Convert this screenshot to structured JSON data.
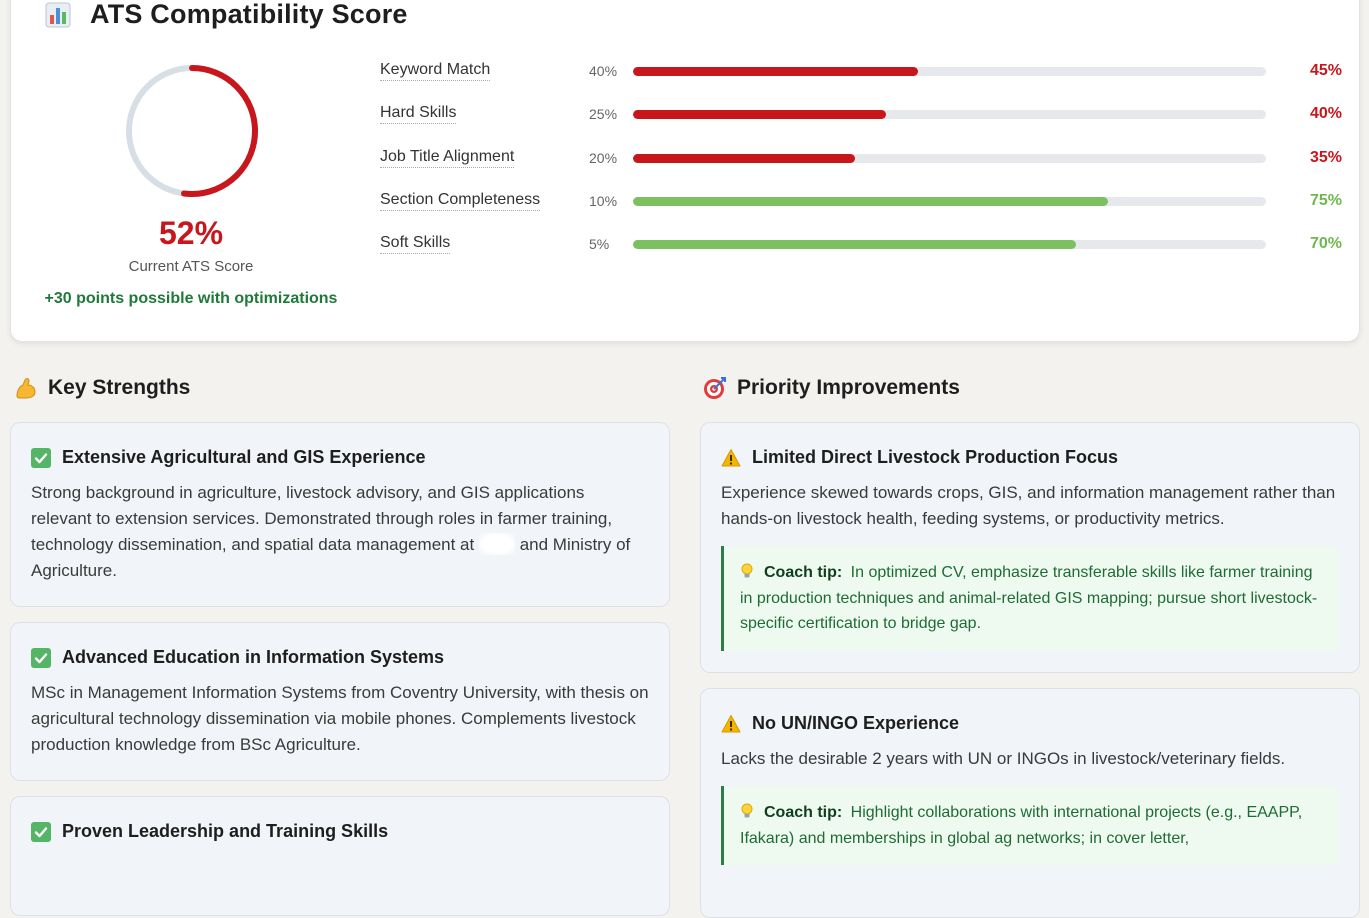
{
  "ats": {
    "title": "ATS Compatibility Score",
    "score": "52%",
    "score_fraction": 0.52,
    "score_label": "Current ATS Score",
    "potential": "+30 points possible with optimizations",
    "metrics": [
      {
        "name": "Keyword Match",
        "weight": "40%",
        "value": "45%",
        "fraction": 0.45,
        "status": "low"
      },
      {
        "name": "Hard Skills",
        "weight": "25%",
        "value": "40%",
        "fraction": 0.4,
        "status": "low"
      },
      {
        "name": "Job Title Alignment",
        "weight": "20%",
        "value": "35%",
        "fraction": 0.35,
        "status": "low"
      },
      {
        "name": "Section Completeness",
        "weight": "10%",
        "value": "75%",
        "fraction": 0.75,
        "status": "good"
      },
      {
        "name": "Soft Skills",
        "weight": "5%",
        "value": "70%",
        "fraction": 0.7,
        "status": "good"
      }
    ]
  },
  "colors": {
    "low": "#c8161d",
    "good": "#7cc15f",
    "track": "#e6e8ec",
    "gauge_bg": "#d8dee6"
  },
  "strengths": {
    "heading": "Key Strengths",
    "icon": "flexed-biceps-icon",
    "items": [
      {
        "title": "Extensive Agricultural and GIS Experience",
        "text_a": "Strong background in agriculture, livestock advisory, and GIS applications relevant to extension services. Demonstrated through roles in farmer training, technology dissemination, and spatial data management at",
        "text_b": "and Ministry of Agriculture."
      },
      {
        "title": "Advanced Education in Information Systems",
        "text": "MSc in Management Information Systems from Coventry University, with thesis on agricultural technology dissemination via mobile phones. Complements livestock production knowledge from BSc Agriculture."
      },
      {
        "title": "Proven Leadership and Training Skills"
      }
    ]
  },
  "improvements": {
    "heading": "Priority Improvements",
    "icon": "target-icon",
    "items": [
      {
        "title": "Limited Direct Livestock Production Focus",
        "text": "Experience skewed towards crops, GIS, and information management rather than hands-on livestock health, feeding systems, or productivity metrics.",
        "tip_label": "Coach tip:",
        "tip": "In optimized CV, emphasize transferable skills like farmer training in production techniques and animal-related GIS mapping; pursue short livestock-specific certification to bridge gap."
      },
      {
        "title": "No UN/INGO Experience",
        "text": "Lacks the desirable 2 years with UN or INGOs in livestock/veterinary fields.",
        "tip_label": "Coach tip:",
        "tip": "Highlight collaborations with international projects (e.g., EAAPP, Ifakara) and memberships in global ag networks; in cover letter,"
      }
    ]
  }
}
